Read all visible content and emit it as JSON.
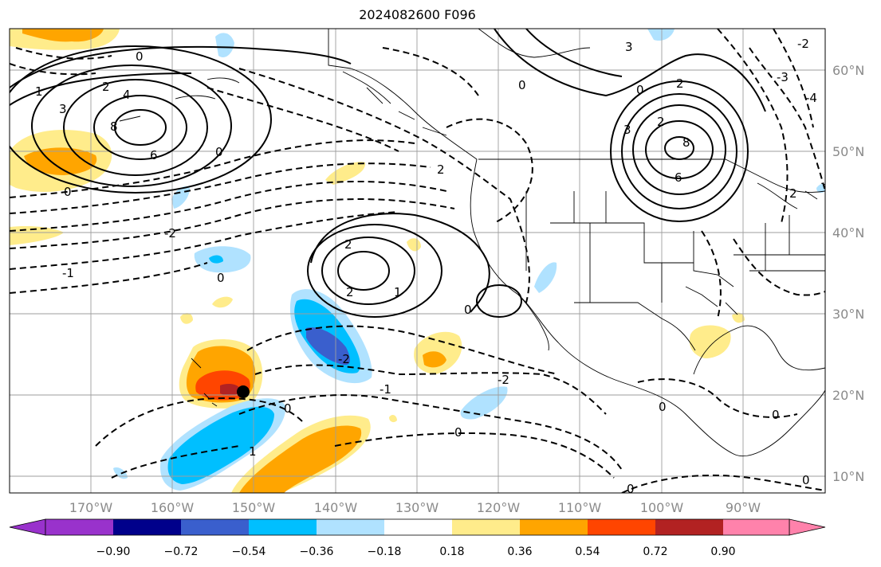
{
  "title": "2024082600 F096",
  "axes": {
    "x_ticks": [
      "170°W",
      "160°W",
      "150°W",
      "140°W",
      "130°W",
      "120°W",
      "110°W",
      "100°W",
      "90°W"
    ],
    "y_ticks": [
      "60°N",
      "50°N",
      "40°N",
      "30°N",
      "20°N",
      "10°N"
    ]
  },
  "colorbar": {
    "labels": [
      "−0.90",
      "−0.72",
      "−0.54",
      "−0.36",
      "−0.18",
      "0.18",
      "0.36",
      "0.54",
      "0.72",
      "0.90"
    ],
    "colors": [
      "#9932cc",
      "#00008b",
      "#3a5fcd",
      "#00bfff",
      "#b0e2ff",
      "#ffffff",
      "#ffec8b",
      "#ffa500",
      "#ff4500",
      "#b22222",
      "#ff82ab"
    ]
  },
  "contour_labels": [
    {
      "text": "3"
    },
    {
      "text": "4"
    },
    {
      "text": "8"
    },
    {
      "text": "6"
    },
    {
      "text": "1"
    },
    {
      "text": "2"
    },
    {
      "text": "0"
    },
    {
      "text": "0"
    },
    {
      "text": "0"
    },
    {
      "text": "2"
    },
    {
      "text": "-2"
    },
    {
      "text": "-1"
    },
    {
      "text": "2"
    },
    {
      "text": "2"
    },
    {
      "text": "1"
    },
    {
      "text": "0"
    },
    {
      "text": "0"
    },
    {
      "text": "-2"
    },
    {
      "text": "-2"
    },
    {
      "text": "-1"
    },
    {
      "text": "0"
    },
    {
      "text": "1"
    },
    {
      "text": "0"
    },
    {
      "text": "0"
    },
    {
      "text": "3"
    },
    {
      "text": "0"
    },
    {
      "text": "3"
    },
    {
      "text": "2"
    },
    {
      "text": "6"
    },
    {
      "text": "8"
    },
    {
      "text": "2"
    },
    {
      "text": "-3"
    },
    {
      "text": "-4"
    },
    {
      "text": "2"
    },
    {
      "text": "-2"
    },
    {
      "text": "0"
    },
    {
      "text": "0"
    },
    {
      "text": "0"
    },
    {
      "text": "0"
    }
  ],
  "marker": {
    "name": "black-dot"
  }
}
